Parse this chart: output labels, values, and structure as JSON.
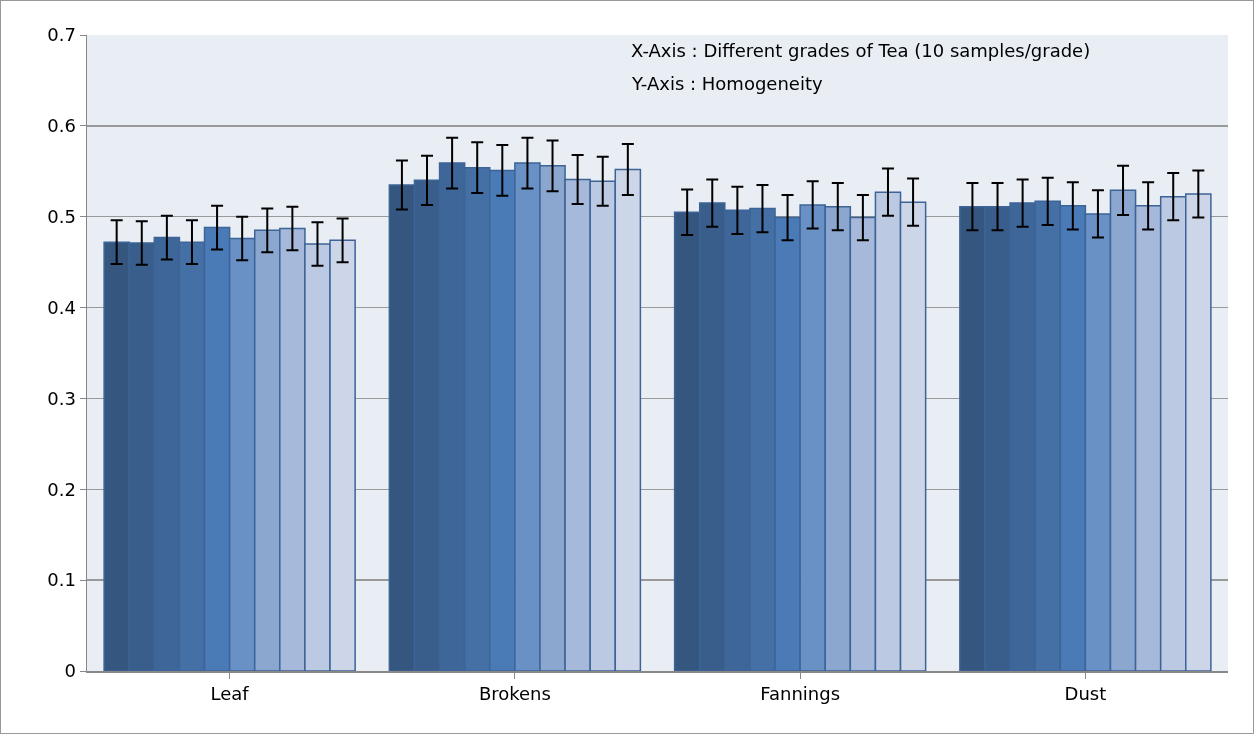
{
  "chart_data": {
    "type": "bar",
    "categories": [
      "Leaf",
      "Brokens",
      "Fannings",
      "Dust"
    ],
    "annotations": [
      "X-Axis : Different grades of Tea (10 samples/grade)",
      "Y-Axis : Homogeneity"
    ],
    "ylim": [
      0,
      0.7
    ],
    "yticks": [
      0,
      0.1,
      0.2,
      0.3,
      0.4,
      0.5,
      0.6,
      0.7
    ],
    "grid": "y",
    "series": [
      {
        "color": "#34567f",
        "values": [
          0.472,
          0.535,
          0.505,
          0.511
        ],
        "errors": [
          0.024,
          0.027,
          0.025,
          0.026
        ]
      },
      {
        "color": "#3a5e8c",
        "values": [
          0.471,
          0.54,
          0.515,
          0.511
        ],
        "errors": [
          0.024,
          0.027,
          0.026,
          0.026
        ]
      },
      {
        "color": "#3f6699",
        "values": [
          0.477,
          0.559,
          0.507,
          0.515
        ],
        "errors": [
          0.024,
          0.028,
          0.026,
          0.026
        ]
      },
      {
        "color": "#4470a6",
        "values": [
          0.472,
          0.554,
          0.509,
          0.517
        ],
        "errors": [
          0.024,
          0.028,
          0.026,
          0.026
        ]
      },
      {
        "color": "#4a7bb7",
        "values": [
          0.488,
          0.551,
          0.499,
          0.512
        ],
        "errors": [
          0.024,
          0.028,
          0.025,
          0.026
        ]
      },
      {
        "color": "#6a91c5",
        "values": [
          0.476,
          0.559,
          0.513,
          0.503
        ],
        "errors": [
          0.024,
          0.028,
          0.026,
          0.026
        ]
      },
      {
        "color": "#8ba6cf",
        "values": [
          0.485,
          0.556,
          0.511,
          0.529
        ],
        "errors": [
          0.024,
          0.028,
          0.026,
          0.027
        ]
      },
      {
        "color": "#a7b9da",
        "values": [
          0.487,
          0.541,
          0.499,
          0.512
        ],
        "errors": [
          0.024,
          0.027,
          0.025,
          0.026
        ]
      },
      {
        "color": "#bcc9e2",
        "values": [
          0.47,
          0.539,
          0.527,
          0.522
        ],
        "errors": [
          0.024,
          0.027,
          0.026,
          0.026
        ]
      },
      {
        "color": "#cdd6e8",
        "values": [
          0.474,
          0.552,
          0.516,
          0.525
        ],
        "errors": [
          0.024,
          0.028,
          0.026,
          0.026
        ]
      }
    ]
  }
}
